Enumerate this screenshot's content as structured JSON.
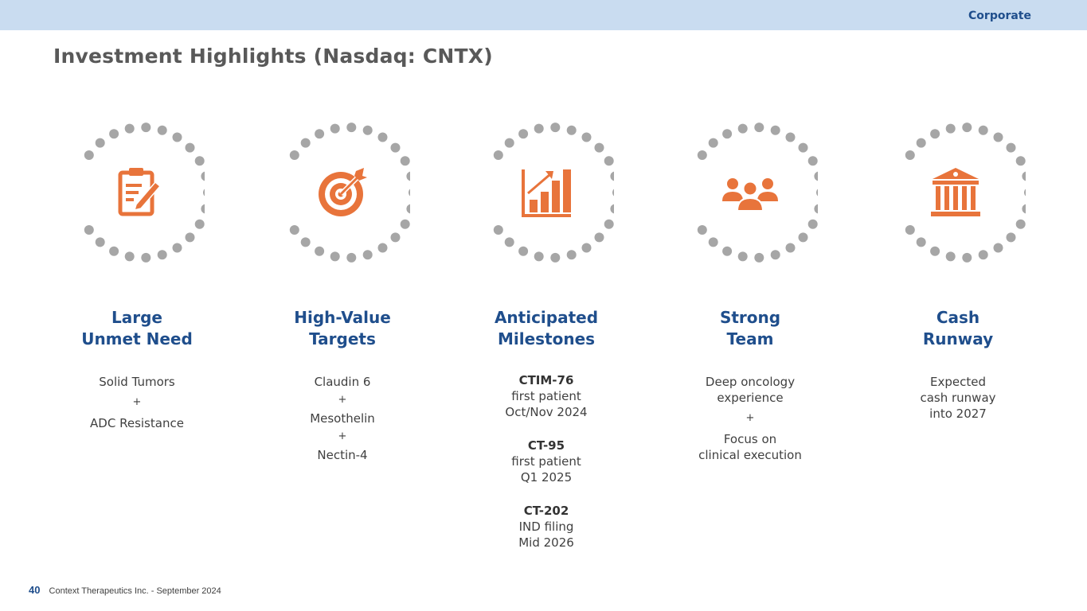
{
  "header": {
    "section": "Corporate"
  },
  "title": "Investment Highlights (Nasdaq: CNTX)",
  "columns": [
    {
      "icon": "clipboard-edit-icon",
      "heading_line1": "Large",
      "heading_line2": "Unmet Need",
      "body": {
        "a": "Solid Tumors",
        "plus1": "+",
        "b": "ADC Resistance"
      }
    },
    {
      "icon": "target-icon",
      "heading_line1": "High-Value",
      "heading_line2": "Targets",
      "body": {
        "a": "Claudin 6",
        "plus1": "+",
        "b": "Mesothelin",
        "plus2": "+",
        "c": "Nectin-4"
      }
    },
    {
      "icon": "growth-chart-icon",
      "heading_line1": "Anticipated",
      "heading_line2": "Milestones",
      "milestones": [
        {
          "name": "CTIM-76",
          "detail": "first patient",
          "date": "Oct/Nov 2024"
        },
        {
          "name": "CT-95",
          "detail": "first patient",
          "date": "Q1 2025"
        },
        {
          "name": "CT-202",
          "detail": "IND filing",
          "date": "Mid 2026"
        }
      ]
    },
    {
      "icon": "team-icon",
      "heading_line1": "Strong",
      "heading_line2": "Team",
      "body": {
        "a1": "Deep oncology",
        "a2": "experience",
        "plus1": "+",
        "b1": "Focus on",
        "b2": "clinical execution"
      }
    },
    {
      "icon": "bank-icon",
      "heading_line1": "Cash",
      "heading_line2": "Runway",
      "body": {
        "a1": "Expected",
        "a2": "cash runway",
        "a3": "into 2027"
      }
    }
  ],
  "footer": {
    "page": "40",
    "text": "Context Therapeutics Inc. -  September 2024"
  },
  "colors": {
    "accent": "#e8743b",
    "heading": "#1f4e8c",
    "dots": "#a6a6a6",
    "topbar": "#c9dcf0"
  }
}
